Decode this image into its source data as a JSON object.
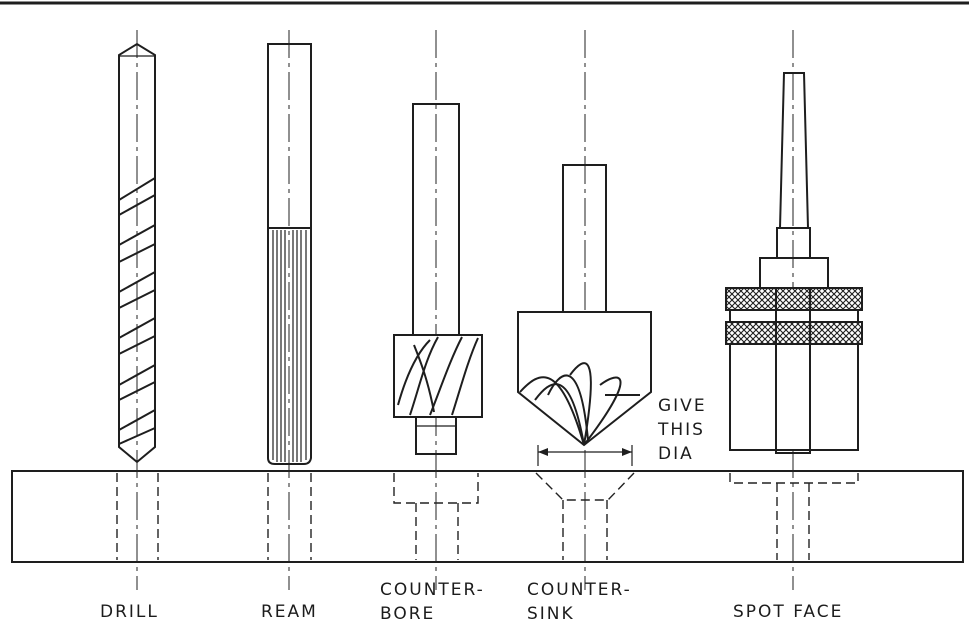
{
  "labels": {
    "drill": "DRILL",
    "ream": "REAM",
    "counterbore_line1": "COUNTER-",
    "counterbore_line2": "BORE",
    "countersink_line1": "COUNTER-",
    "countersink_line2": "SINK",
    "spot_face": "SPOT FACE",
    "give": "GIVE",
    "this": "THIS",
    "dia": "DIA"
  },
  "colors": {
    "ink": "#1e1e1e",
    "background": "#ffffff"
  }
}
